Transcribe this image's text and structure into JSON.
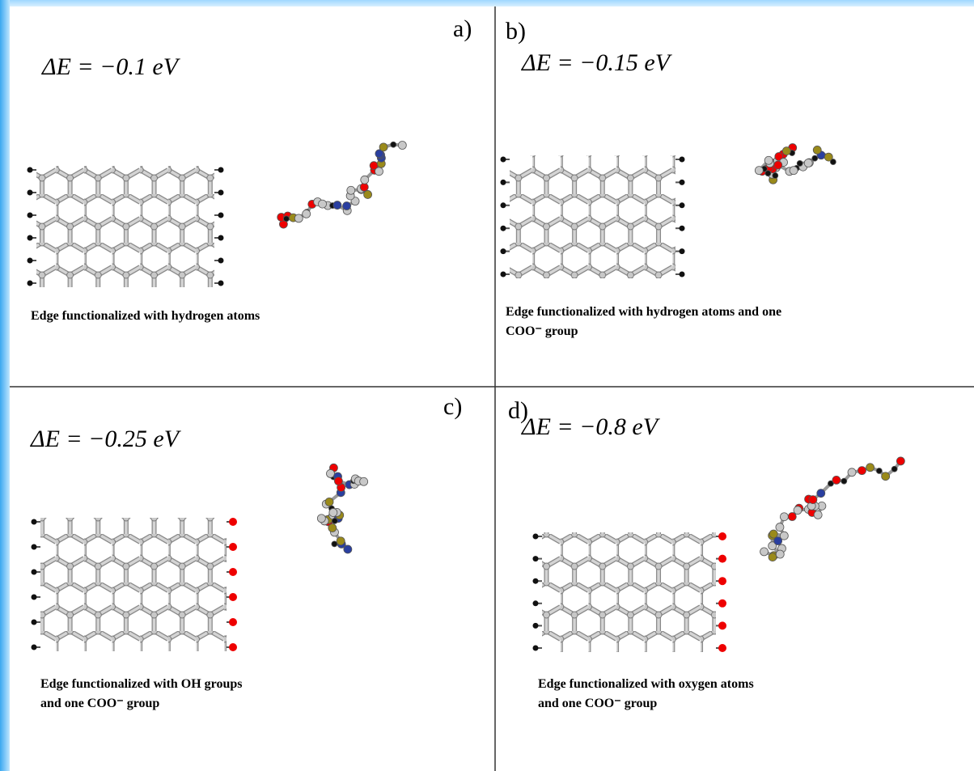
{
  "panels": [
    {
      "label": "a)",
      "energy": "ΔE = −0.1 eV",
      "caption": [
        "Edge functionalized with hydrogen atoms"
      ]
    },
    {
      "label": "b)",
      "energy": "ΔE = −0.15 eV",
      "caption": [
        "Edge functionalized with hydrogen atoms and one",
        "COO⁻ group"
      ]
    },
    {
      "label": "c)",
      "energy": "ΔE = −0.25 eV",
      "caption": [
        "Edge functionalized with OH groups",
        "and one COO⁻ group"
      ]
    },
    {
      "label": "d)",
      "energy": "ΔE = −0.8 eV",
      "caption": [
        "Edge functionalized with oxygen atoms",
        "and one COO⁻ group"
      ]
    }
  ]
}
